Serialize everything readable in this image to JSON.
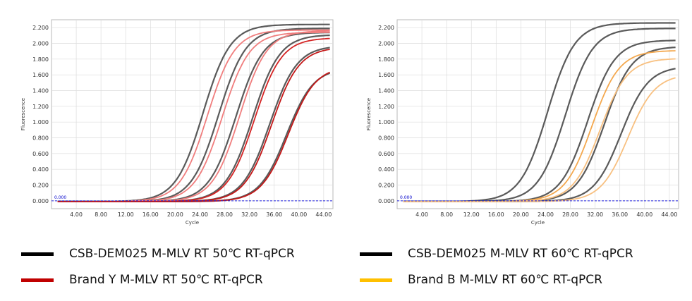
{
  "chart_data": [
    {
      "type": "line",
      "panel": "left",
      "xlabel": "Cycle",
      "ylabel": "Fluorescence",
      "xlim": [
        0,
        45.5
      ],
      "ylim": [
        -0.1,
        2.3
      ],
      "x_ticks": [
        "4.00",
        "8.00",
        "12.00",
        "16.00",
        "20.00",
        "24.00",
        "28.00",
        "32.00",
        "36.00",
        "40.00",
        "44.00"
      ],
      "y_ticks": [
        "0.000",
        "0.200",
        "0.400",
        "0.600",
        "0.800",
        "1.000",
        "1.200",
        "1.400",
        "1.600",
        "1.800",
        "2.000",
        "2.200"
      ],
      "threshold": {
        "value": 0.0,
        "label": "0.000"
      },
      "grid": true,
      "series": [
        {
          "group": "black",
          "color": "#5a5a5a",
          "ct": 24.5,
          "max": 2.25
        },
        {
          "group": "black",
          "color": "#5a5a5a",
          "ct": 27.0,
          "max": 2.2
        },
        {
          "group": "black",
          "color": "#5a5a5a",
          "ct": 29.8,
          "max": 2.15
        },
        {
          "group": "black",
          "color": "#5a5a5a",
          "ct": 32.5,
          "max": 2.12
        },
        {
          "group": "black",
          "color": "#5a5a5a",
          "ct": 35.3,
          "max": 1.98
        },
        {
          "group": "black",
          "color": "#5a5a5a",
          "ct": 38.0,
          "max": 1.7
        },
        {
          "group": "red",
          "color": "#f07d7d",
          "ct": 25.2,
          "max": 2.18
        },
        {
          "group": "red",
          "color": "#f07d7d",
          "ct": 27.6,
          "max": 2.15
        },
        {
          "group": "red",
          "color": "#f07d7d",
          "ct": 30.4,
          "max": 2.17
        },
        {
          "group": "red",
          "color": "#d42424",
          "ct": 32.8,
          "max": 2.08
        },
        {
          "group": "red",
          "color": "#c41818",
          "ct": 35.6,
          "max": 1.96
        },
        {
          "group": "red",
          "color": "#c41818",
          "ct": 38.3,
          "max": 1.72
        }
      ]
    },
    {
      "type": "line",
      "panel": "right",
      "xlabel": "Cycle",
      "ylabel": "Fluorescence",
      "xlim": [
        0,
        45.5
      ],
      "ylim": [
        -0.1,
        2.3
      ],
      "x_ticks": [
        "4.00",
        "8.00",
        "12.00",
        "16.00",
        "20.00",
        "24.00",
        "28.00",
        "32.00",
        "36.00",
        "40.00",
        "44.00"
      ],
      "y_ticks": [
        "0.000",
        "0.200",
        "0.400",
        "0.600",
        "0.800",
        "1.000",
        "1.200",
        "1.400",
        "1.600",
        "1.800",
        "2.000",
        "2.200"
      ],
      "threshold": {
        "value": 0.0,
        "label": "0.000"
      },
      "grid": true,
      "series": [
        {
          "group": "black",
          "color": "#5a5a5a",
          "ct": 24.3,
          "max": 2.27
        },
        {
          "group": "black",
          "color": "#5a5a5a",
          "ct": 27.2,
          "max": 2.2
        },
        {
          "group": "black",
          "color": "#5a5a5a",
          "ct": 30.8,
          "max": 2.05
        },
        {
          "group": "black",
          "color": "#5a5a5a",
          "ct": 33.5,
          "max": 1.97
        },
        {
          "group": "black",
          "color": "#5a5a5a",
          "ct": 36.2,
          "max": 1.72
        },
        {
          "group": "orange",
          "color": "#f4a84e",
          "ct": 31.5,
          "max": 1.92
        },
        {
          "group": "orange",
          "color": "#f8c080",
          "ct": 32.8,
          "max": 1.82
        },
        {
          "group": "orange",
          "color": "#f8c080",
          "ct": 37.3,
          "max": 1.62
        }
      ]
    }
  ],
  "legend": [
    {
      "label": "CSB-DEM025 M-MLV RT 50℃ RT-qPCR",
      "color": "#000000"
    },
    {
      "label": "CSB-DEM025 M-MLV RT 60℃ RT-qPCR",
      "color": "#000000"
    },
    {
      "label": "Brand Y M-MLV RT 50℃ RT-qPCR",
      "color": "#c00000"
    },
    {
      "label": "Brand B M-MLV RT 60℃ RT-qPCR",
      "color": "#ffc000"
    }
  ]
}
